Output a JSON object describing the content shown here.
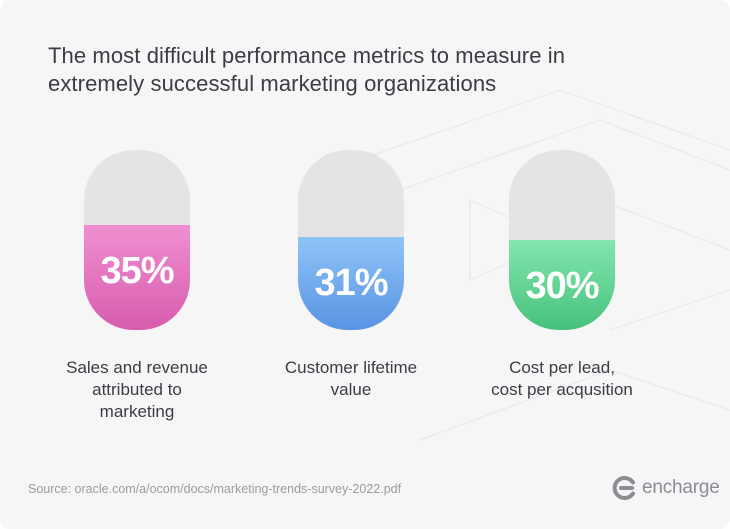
{
  "title": {
    "line1": "The most difficult performance metrics to measure in",
    "line2": "extremely successful marketing organizations"
  },
  "chart_data": {
    "type": "bar",
    "categories": [
      "Sales and revenue attributed to marketing",
      "Customer lifetime value",
      "Cost per lead, cost per acqusition"
    ],
    "values": [
      35,
      31,
      30
    ],
    "value_labels": [
      "35%",
      "31%",
      "30%"
    ],
    "category_lines": [
      [
        "Sales and revenue",
        "attributed to",
        "marketing"
      ],
      [
        "Customer lifetime",
        "value"
      ],
      [
        "Cost per lead,",
        "cost per acqusition"
      ]
    ],
    "ylim": [
      0,
      60
    ],
    "colors": [
      [
        "#f08fd0",
        "#d75cae"
      ],
      [
        "#8ec4f7",
        "#5a93e3"
      ],
      [
        "#82e6ad",
        "#47c27c"
      ]
    ],
    "grid": false,
    "legend": false
  },
  "source": "Source: oracle.com/a/ocom/docs/marketing-trends-survey-2022.pdf",
  "logo": {
    "icon": "encharge-c-icon",
    "text": "encharge",
    "color": "#8a8d96"
  }
}
